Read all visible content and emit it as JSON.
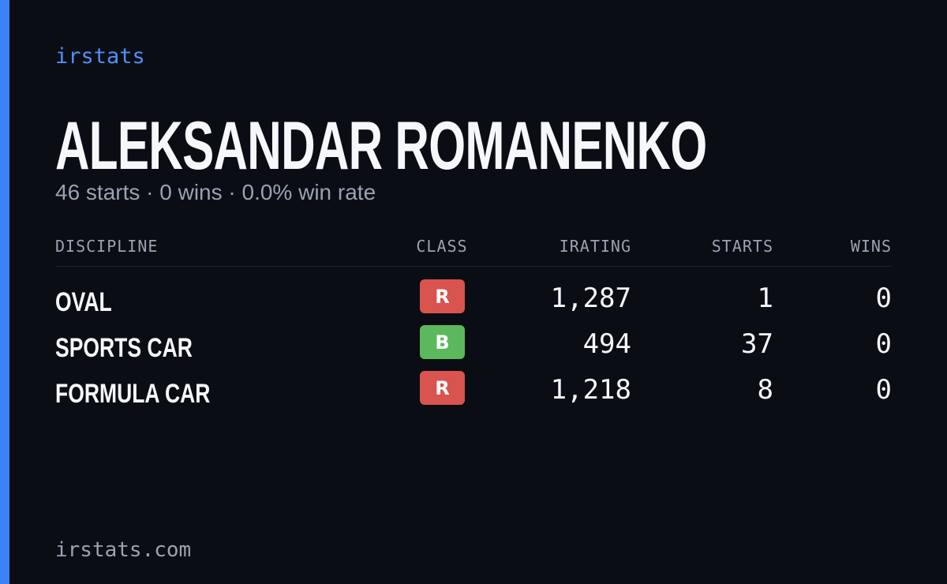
{
  "brand": "irstats",
  "title": "ALEKSANDAR ROMANENKO",
  "subtitle": "46 starts · 0 wins · 0.0% win rate",
  "table": {
    "headers": [
      "DISCIPLINE",
      "CLASS",
      "IRATING",
      "STARTS",
      "WINS"
    ],
    "rows": [
      [
        "OVAL",
        "R",
        "1,287",
        "1",
        "0"
      ],
      [
        "SPORTS CAR",
        "B",
        "494",
        "37",
        "0"
      ],
      [
        "FORMULA CAR",
        "R",
        "1,218",
        "8",
        "0"
      ]
    ]
  },
  "footer": "irstats.com"
}
